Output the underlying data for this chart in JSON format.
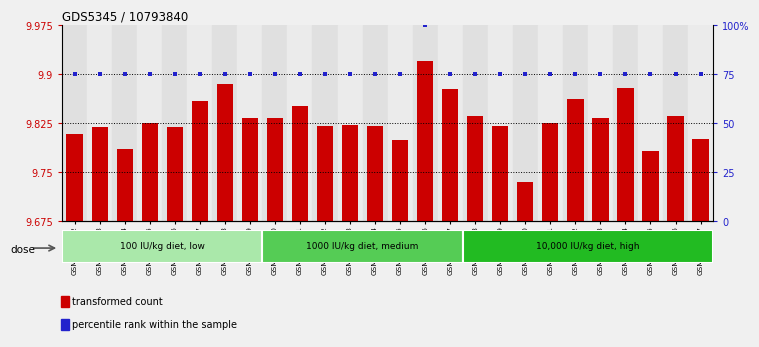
{
  "title": "GDS5345 / 10793840",
  "samples": [
    "GSM1502412",
    "GSM1502413",
    "GSM1502414",
    "GSM1502415",
    "GSM1502416",
    "GSM1502417",
    "GSM1502418",
    "GSM1502419",
    "GSM1502420",
    "GSM1502421",
    "GSM1502422",
    "GSM1502423",
    "GSM1502424",
    "GSM1502425",
    "GSM1502426",
    "GSM1502427",
    "GSM1502428",
    "GSM1502429",
    "GSM1502430",
    "GSM1502431",
    "GSM1502432",
    "GSM1502433",
    "GSM1502434",
    "GSM1502435",
    "GSM1502436",
    "GSM1502437"
  ],
  "bar_values": [
    9.808,
    9.818,
    9.785,
    9.825,
    9.818,
    9.858,
    9.885,
    9.832,
    9.833,
    9.85,
    9.82,
    9.822,
    9.82,
    9.798,
    9.92,
    9.877,
    9.835,
    9.82,
    9.735,
    9.824,
    9.862,
    9.832,
    9.878,
    9.782,
    9.836,
    9.8
  ],
  "percentile_values": [
    75,
    75,
    75,
    75,
    75,
    75,
    75,
    75,
    75,
    75,
    75,
    75,
    75,
    75,
    100,
    75,
    75,
    75,
    75,
    75,
    75,
    75,
    75,
    75,
    75,
    75
  ],
  "bar_color": "#cc0000",
  "percentile_color": "#2222cc",
  "ymin": 9.675,
  "ymax": 9.975,
  "y_right_tick_vals": [
    0,
    25,
    50,
    75,
    100
  ],
  "y_right_tick_labels": [
    "0",
    "25",
    "50",
    "75",
    "100%"
  ],
  "y_left_ticks": [
    9.675,
    9.75,
    9.825,
    9.9,
    9.975
  ],
  "dotted_lines": [
    9.9,
    9.825,
    9.75
  ],
  "groups": [
    {
      "label": "100 IU/kg diet, low",
      "start": 0,
      "end": 8,
      "color": "#aae8aa"
    },
    {
      "label": "1000 IU/kg diet, medium",
      "start": 8,
      "end": 16,
      "color": "#55cc55"
    },
    {
      "label": "10,000 IU/kg diet, high",
      "start": 16,
      "end": 26,
      "color": "#22bb22"
    }
  ],
  "legend_items": [
    {
      "label": "transformed count",
      "color": "#cc0000"
    },
    {
      "label": "percentile rank within the sample",
      "color": "#2222cc"
    }
  ],
  "dose_label": "dose",
  "fig_bg_color": "#f0f0f0",
  "plot_bg_color": "#ffffff",
  "col_bg_even": "#e0e0e0",
  "col_bg_odd": "#ebebeb"
}
